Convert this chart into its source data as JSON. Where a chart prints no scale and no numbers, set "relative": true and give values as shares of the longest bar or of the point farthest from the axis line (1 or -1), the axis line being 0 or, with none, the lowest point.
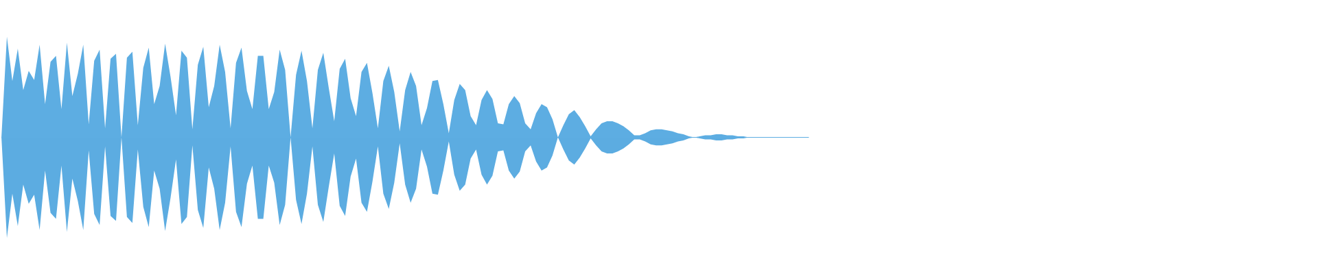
{
  "chart_data": {
    "type": "area",
    "relative": true,
    "categories": [
      null,
      null,
      null,
      null,
      null,
      null,
      null,
      null,
      null,
      null,
      null,
      null,
      null,
      null,
      null,
      null,
      null,
      null,
      null,
      null,
      null,
      null,
      null,
      null,
      null,
      null,
      null,
      null,
      null,
      null,
      null,
      null,
      null,
      null,
      null,
      null,
      null,
      null,
      null,
      null,
      null,
      null,
      null,
      null,
      null,
      null,
      null,
      null,
      null,
      null,
      null,
      null,
      null,
      null,
      null,
      null,
      null,
      null,
      null,
      null,
      null,
      null,
      null,
      null,
      null,
      null,
      null,
      null,
      null,
      null,
      null,
      null,
      null,
      null,
      null,
      null,
      null,
      null,
      null,
      null,
      null,
      null,
      null,
      null,
      null,
      null,
      null,
      null,
      null,
      null,
      null,
      null,
      null,
      null,
      null,
      null,
      null,
      null,
      null,
      null,
      null,
      null,
      null,
      null,
      null,
      null,
      null,
      null,
      null,
      null,
      null,
      null,
      null,
      null,
      null,
      null,
      null,
      null,
      null,
      null,
      null,
      null,
      null,
      null,
      null,
      null,
      null,
      null,
      null,
      null,
      null,
      null,
      null,
      null,
      null,
      null,
      null,
      null,
      null,
      null,
      null,
      null,
      null,
      null,
      null,
      null,
      null,
      null,
      null
    ],
    "series": [
      {
        "color": "#5dade2",
        "values": [
          0,
          1,
          0.56,
          0.88,
          0.47,
          0.66,
          0.57,
          0.92,
          0.33,
          0.75,
          0.81,
          0.28,
          0.94,
          0.41,
          0.63,
          0.92,
          0.13,
          0.76,
          0.87,
          0.09,
          0.78,
          0.83,
          0,
          0.79,
          0.85,
          0.12,
          0.69,
          0.89,
          0.33,
          0.51,
          0.93,
          0.6,
          0.22,
          0.86,
          0.79,
          0.08,
          0.72,
          0.9,
          0.3,
          0.51,
          0.92,
          0.65,
          0.09,
          0.74,
          0.89,
          0.46,
          0.28,
          0.81,
          0.81,
          0.28,
          0.45,
          0.87,
          0.67,
          0,
          0.62,
          0.86,
          0.56,
          0.09,
          0.67,
          0.84,
          0.49,
          0.16,
          0.68,
          0.78,
          0.39,
          0.21,
          0.65,
          0.74,
          0.44,
          0.09,
          0.56,
          0.71,
          0.45,
          0.06,
          0.47,
          0.65,
          0.51,
          0.12,
          0.29,
          0.56,
          0.57,
          0.33,
          0.04,
          0.37,
          0.53,
          0.47,
          0.21,
          0.12,
          0.37,
          0.47,
          0.38,
          0.14,
          0.13,
          0.33,
          0.41,
          0.34,
          0.14,
          0.08,
          0.24,
          0.33,
          0.3,
          0.18,
          0,
          0.12,
          0.23,
          0.27,
          0.2,
          0.11,
          0.01,
          0.08,
          0.14,
          0.16,
          0.16,
          0.14,
          0.11,
          0.07,
          0.02,
          0.02,
          0.04,
          0.07,
          0.08,
          0.08,
          0.07,
          0.06,
          0.04,
          0.03,
          0.01,
          0,
          0.01,
          0.02,
          0.02,
          0.03,
          0.03,
          0.02,
          0.02,
          0.01,
          0.01,
          0,
          0,
          0,
          0,
          0,
          0,
          0,
          0,
          0,
          0,
          0,
          0
        ]
      },
      {
        "color": "#5cace1",
        "values": [
          0,
          -1,
          -0.56,
          -0.88,
          -0.47,
          -0.66,
          -0.57,
          -0.92,
          -0.33,
          -0.75,
          -0.81,
          -0.28,
          -0.94,
          -0.41,
          -0.63,
          -0.92,
          -0.13,
          -0.76,
          -0.87,
          -0.09,
          -0.78,
          -0.83,
          0,
          -0.79,
          -0.85,
          -0.12,
          -0.69,
          -0.89,
          -0.33,
          -0.51,
          -0.93,
          -0.6,
          -0.22,
          -0.86,
          -0.79,
          -0.08,
          -0.72,
          -0.9,
          -0.3,
          -0.51,
          -0.92,
          -0.65,
          -0.09,
          -0.74,
          -0.89,
          -0.46,
          -0.28,
          -0.81,
          -0.81,
          -0.28,
          -0.45,
          -0.87,
          -0.67,
          0,
          -0.62,
          -0.86,
          -0.56,
          -0.09,
          -0.67,
          -0.84,
          -0.49,
          -0.16,
          -0.68,
          -0.78,
          -0.39,
          -0.21,
          -0.65,
          -0.74,
          -0.44,
          -0.09,
          -0.56,
          -0.71,
          -0.45,
          -0.06,
          -0.47,
          -0.65,
          -0.51,
          -0.12,
          -0.29,
          -0.56,
          -0.57,
          -0.33,
          -0.04,
          -0.37,
          -0.53,
          -0.47,
          -0.21,
          -0.12,
          -0.37,
          -0.47,
          -0.38,
          -0.14,
          -0.13,
          -0.33,
          -0.41,
          -0.34,
          -0.14,
          -0.08,
          -0.24,
          -0.33,
          -0.3,
          -0.18,
          0,
          -0.12,
          -0.23,
          -0.27,
          -0.2,
          -0.11,
          -0.01,
          -0.08,
          -0.14,
          -0.16,
          -0.16,
          -0.14,
          -0.11,
          -0.07,
          -0.02,
          -0.02,
          -0.04,
          -0.07,
          -0.08,
          -0.08,
          -0.07,
          -0.06,
          -0.04,
          -0.03,
          -0.01,
          0,
          -0.01,
          -0.02,
          -0.02,
          -0.03,
          -0.03,
          -0.02,
          -0.02,
          -0.01,
          -0.01,
          0,
          0,
          0,
          0,
          0,
          0,
          0,
          0,
          0,
          0,
          0,
          0
        ]
      }
    ]
  }
}
